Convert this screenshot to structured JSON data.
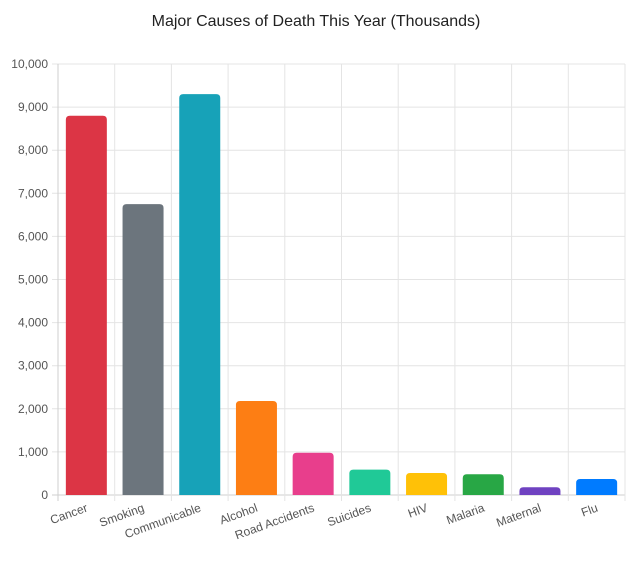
{
  "chart_data": {
    "type": "bar",
    "title": "Major Causes of Death This Year (Thousands)",
    "xlabel": "",
    "ylabel": "",
    "ylim": [
      0,
      10000
    ],
    "yticks": [
      "0",
      "1,000",
      "2,000",
      "3,000",
      "4,000",
      "5,000",
      "6,000",
      "7,000",
      "8,000",
      "9,000",
      "10,000"
    ],
    "categories": [
      "Cancer",
      "Smoking",
      "Communicable",
      "Alcohol",
      "Road Accidents",
      "Suicides",
      "HIV",
      "Malaria",
      "Maternal",
      "Flu"
    ],
    "values": [
      8800,
      6750,
      9300,
      2180,
      980,
      590,
      510,
      480,
      180,
      370
    ],
    "colors": [
      "#dc3545",
      "#6c757d",
      "#17a2b8",
      "#fd7e14",
      "#e83e8c",
      "#20c997",
      "#ffc107",
      "#28a745",
      "#6f42c1",
      "#007bff"
    ],
    "grid": true,
    "legend": "none"
  }
}
